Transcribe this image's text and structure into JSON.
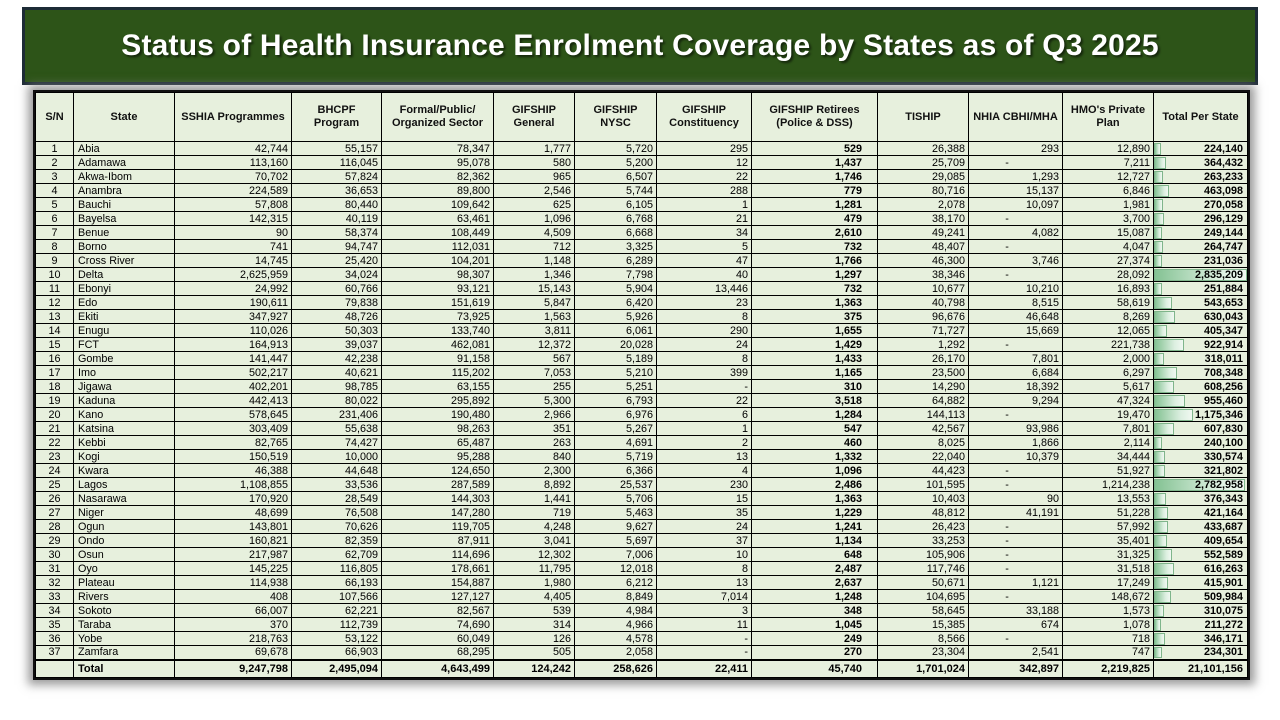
{
  "banner": {
    "title": "Status of Health Insurance Enrolment Coverage by States as of Q3 2025"
  },
  "colors": {
    "banner_background": "#2d5418",
    "banner_border": "#1d2b36",
    "cell_background": "#e7f0dd",
    "databar_green": "#84c293",
    "title_text": "#ffffff"
  },
  "chart_data": {
    "type": "table",
    "title": "Status of Health Insurance Enrolment Coverage by States as of Q3 2025",
    "columns": [
      "S/N",
      "State",
      "SSHIA Programmes",
      "BHCPF Program",
      "Formal/Public/ Organized Sector",
      "GIFSHIP General",
      "GIFSHIP NYSC",
      "GIFSHIP Constituency",
      "GIFSHIP Retirees (Police & DSS)",
      "TISHIP",
      "NHIA CBHI/MHA",
      "HMO's Private Plan",
      "Total Per State"
    ],
    "databar_column": "Total Per State",
    "databar_max": 2835209,
    "rows": [
      [
        "1",
        "Abia",
        "42,744",
        "55,157",
        "78,347",
        "1,777",
        "5,720",
        "295",
        "529",
        "26,388",
        "293",
        "12,890",
        "224,140"
      ],
      [
        "2",
        "Adamawa",
        "113,160",
        "116,045",
        "95,078",
        "580",
        "5,200",
        "12",
        "1,437",
        "25,709",
        "-",
        "7,211",
        "364,432"
      ],
      [
        "3",
        "Akwa-Ibom",
        "70,702",
        "57,824",
        "82,362",
        "965",
        "6,507",
        "22",
        "1,746",
        "29,085",
        "1,293",
        "12,727",
        "263,233"
      ],
      [
        "4",
        "Anambra",
        "224,589",
        "36,653",
        "89,800",
        "2,546",
        "5,744",
        "288",
        "779",
        "80,716",
        "15,137",
        "6,846",
        "463,098"
      ],
      [
        "5",
        "Bauchi",
        "57,808",
        "80,440",
        "109,642",
        "625",
        "6,105",
        "1",
        "1,281",
        "2,078",
        "10,097",
        "1,981",
        "270,058"
      ],
      [
        "6",
        "Bayelsa",
        "142,315",
        "40,119",
        "63,461",
        "1,096",
        "6,768",
        "21",
        "479",
        "38,170",
        "-",
        "3,700",
        "296,129"
      ],
      [
        "7",
        "Benue",
        "90",
        "58,374",
        "108,449",
        "4,509",
        "6,668",
        "34",
        "2,610",
        "49,241",
        "4,082",
        "15,087",
        "249,144"
      ],
      [
        "8",
        "Borno",
        "741",
        "94,747",
        "112,031",
        "712",
        "3,325",
        "5",
        "732",
        "48,407",
        "-",
        "4,047",
        "264,747"
      ],
      [
        "9",
        "Cross River",
        "14,745",
        "25,420",
        "104,201",
        "1,148",
        "6,289",
        "47",
        "1,766",
        "46,300",
        "3,746",
        "27,374",
        "231,036"
      ],
      [
        "10",
        "Delta",
        "2,625,959",
        "34,024",
        "98,307",
        "1,346",
        "7,798",
        "40",
        "1,297",
        "38,346",
        "-",
        "28,092",
        "2,835,209"
      ],
      [
        "11",
        "Ebonyi",
        "24,992",
        "60,766",
        "93,121",
        "15,143",
        "5,904",
        "13,446",
        "732",
        "10,677",
        "10,210",
        "16,893",
        "251,884"
      ],
      [
        "12",
        "Edo",
        "190,611",
        "79,838",
        "151,619",
        "5,847",
        "6,420",
        "23",
        "1,363",
        "40,798",
        "8,515",
        "58,619",
        "543,653"
      ],
      [
        "13",
        "Ekiti",
        "347,927",
        "48,726",
        "73,925",
        "1,563",
        "5,926",
        "8",
        "375",
        "96,676",
        "46,648",
        "8,269",
        "630,043"
      ],
      [
        "14",
        "Enugu",
        "110,026",
        "50,303",
        "133,740",
        "3,811",
        "6,061",
        "290",
        "1,655",
        "71,727",
        "15,669",
        "12,065",
        "405,347"
      ],
      [
        "15",
        "FCT",
        "164,913",
        "39,037",
        "462,081",
        "12,372",
        "20,028",
        "24",
        "1,429",
        "1,292",
        "-",
        "221,738",
        "922,914"
      ],
      [
        "16",
        "Gombe",
        "141,447",
        "42,238",
        "91,158",
        "567",
        "5,189",
        "8",
        "1,433",
        "26,170",
        "7,801",
        "2,000",
        "318,011"
      ],
      [
        "17",
        "Imo",
        "502,217",
        "40,621",
        "115,202",
        "7,053",
        "5,210",
        "399",
        "1,165",
        "23,500",
        "6,684",
        "6,297",
        "708,348"
      ],
      [
        "18",
        "Jigawa",
        "402,201",
        "98,785",
        "63,155",
        "255",
        "5,251",
        "-",
        "310",
        "14,290",
        "18,392",
        "5,617",
        "608,256"
      ],
      [
        "19",
        "Kaduna",
        "442,413",
        "80,022",
        "295,892",
        "5,300",
        "6,793",
        "22",
        "3,518",
        "64,882",
        "9,294",
        "47,324",
        "955,460"
      ],
      [
        "20",
        "Kano",
        "578,645",
        "231,406",
        "190,480",
        "2,966",
        "6,976",
        "6",
        "1,284",
        "144,113",
        "-",
        "19,470",
        "1,175,346"
      ],
      [
        "21",
        "Katsina",
        "303,409",
        "55,638",
        "98,263",
        "351",
        "5,267",
        "1",
        "547",
        "42,567",
        "93,986",
        "7,801",
        "607,830"
      ],
      [
        "22",
        "Kebbi",
        "82,765",
        "74,427",
        "65,487",
        "263",
        "4,691",
        "2",
        "460",
        "8,025",
        "1,866",
        "2,114",
        "240,100"
      ],
      [
        "23",
        "Kogi",
        "150,519",
        "10,000",
        "95,288",
        "840",
        "5,719",
        "13",
        "1,332",
        "22,040",
        "10,379",
        "34,444",
        "330,574"
      ],
      [
        "24",
        "Kwara",
        "46,388",
        "44,648",
        "124,650",
        "2,300",
        "6,366",
        "4",
        "1,096",
        "44,423",
        "-",
        "51,927",
        "321,802"
      ],
      [
        "25",
        "Lagos",
        "1,108,855",
        "33,536",
        "287,589",
        "8,892",
        "25,537",
        "230",
        "2,486",
        "101,595",
        "-",
        "1,214,238",
        "2,782,958"
      ],
      [
        "26",
        "Nasarawa",
        "170,920",
        "28,549",
        "144,303",
        "1,441",
        "5,706",
        "15",
        "1,363",
        "10,403",
        "90",
        "13,553",
        "376,343"
      ],
      [
        "27",
        "Niger",
        "48,699",
        "76,508",
        "147,280",
        "719",
        "5,463",
        "35",
        "1,229",
        "48,812",
        "41,191",
        "51,228",
        "421,164"
      ],
      [
        "28",
        "Ogun",
        "143,801",
        "70,626",
        "119,705",
        "4,248",
        "9,627",
        "24",
        "1,241",
        "26,423",
        "-",
        "57,992",
        "433,687"
      ],
      [
        "29",
        "Ondo",
        "160,821",
        "82,359",
        "87,911",
        "3,041",
        "5,697",
        "37",
        "1,134",
        "33,253",
        "-",
        "35,401",
        "409,654"
      ],
      [
        "30",
        "Osun",
        "217,987",
        "62,709",
        "114,696",
        "12,302",
        "7,006",
        "10",
        "648",
        "105,906",
        "-",
        "31,325",
        "552,589"
      ],
      [
        "31",
        "Oyo",
        "145,225",
        "116,805",
        "178,661",
        "11,795",
        "12,018",
        "8",
        "2,487",
        "117,746",
        "-",
        "31,518",
        "616,263"
      ],
      [
        "32",
        "Plateau",
        "114,938",
        "66,193",
        "154,887",
        "1,980",
        "6,212",
        "13",
        "2,637",
        "50,671",
        "1,121",
        "17,249",
        "415,901"
      ],
      [
        "33",
        "Rivers",
        "408",
        "107,566",
        "127,127",
        "4,405",
        "8,849",
        "7,014",
        "1,248",
        "104,695",
        "-",
        "148,672",
        "509,984"
      ],
      [
        "34",
        "Sokoto",
        "66,007",
        "62,221",
        "82,567",
        "539",
        "4,984",
        "3",
        "348",
        "58,645",
        "33,188",
        "1,573",
        "310,075"
      ],
      [
        "35",
        "Taraba",
        "370",
        "112,739",
        "74,690",
        "314",
        "4,966",
        "11",
        "1,045",
        "15,385",
        "674",
        "1,078",
        "211,272"
      ],
      [
        "36",
        "Yobe",
        "218,763",
        "53,122",
        "60,049",
        "126",
        "4,578",
        "-",
        "249",
        "8,566",
        "-",
        "718",
        "346,171"
      ],
      [
        "37",
        "Zamfara",
        "69,678",
        "66,903",
        "68,295",
        "505",
        "2,058",
        "-",
        "270",
        "23,304",
        "2,541",
        "747",
        "234,301"
      ]
    ],
    "total_row": [
      "",
      "Total",
      "9,247,798",
      "2,495,094",
      "4,643,499",
      "124,242",
      "258,626",
      "22,411",
      "45,740",
      "1,701,024",
      "342,897",
      "2,219,825",
      "21,101,156"
    ]
  }
}
